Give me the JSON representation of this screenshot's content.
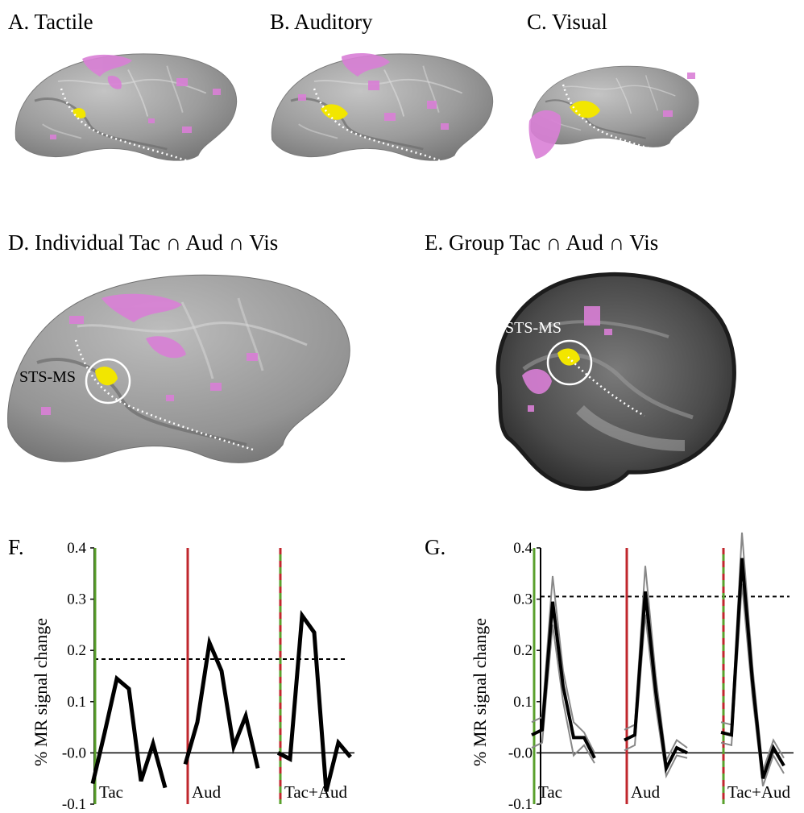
{
  "panels": {
    "a": {
      "label": "A. Tactile"
    },
    "b": {
      "label": "B. Auditory"
    },
    "c": {
      "label": "C. Visual"
    },
    "d": {
      "label": "D. Individual Tac ∩ Aud ∩ Vis",
      "roi": "STS-MS"
    },
    "e": {
      "label": "E. Group Tac ∩ Aud ∩ Vis",
      "roi": "STS-MS"
    },
    "f": {
      "label": "F."
    },
    "g": {
      "label": "G."
    }
  },
  "colors": {
    "activation": "#d97fd6",
    "overlap": "#f2e600",
    "tactile_onset": "#5aa02c",
    "auditory_onset": "#c0272d",
    "mean_trace": "#000000",
    "individual_trace": "#888888"
  },
  "chart_data": [
    {
      "id": "F",
      "type": "line",
      "ylabel": "% MR signal change",
      "ylim": [
        -0.1,
        0.4
      ],
      "yticks": [
        "0.4",
        "0.3",
        "0.2",
        "0.1",
        "-0.0",
        "-0.1"
      ],
      "threshold": 0.183,
      "conditions": [
        {
          "label": "Tac",
          "values": [
            -0.06,
            0.04,
            0.145,
            0.125,
            -0.055,
            0.018,
            -0.068
          ]
        },
        {
          "label": "Aud",
          "values": [
            -0.022,
            0.06,
            0.215,
            0.16,
            0.012,
            0.072,
            -0.03
          ]
        },
        {
          "label": "Tac+Aud",
          "values": [
            0.0,
            -0.012,
            0.268,
            0.235,
            -0.075,
            0.02,
            -0.008
          ]
        }
      ]
    },
    {
      "id": "G",
      "type": "line",
      "ylabel": "% MR signal change",
      "ylim": [
        -0.1,
        0.4
      ],
      "yticks": [
        "0.4",
        "0.3",
        "0.2",
        "0.1",
        "-0.0",
        "-0.1"
      ],
      "threshold": 0.305,
      "conditions": [
        {
          "label": "Tac",
          "mean": [
            0.035,
            0.045,
            0.295,
            0.13,
            0.03,
            0.03,
            -0.01
          ],
          "individuals": [
            [
              0.06,
              0.07,
              0.345,
              0.16,
              0.06,
              0.04,
              0.0
            ],
            [
              0.01,
              0.02,
              0.25,
              0.1,
              -0.005,
              0.015,
              -0.02
            ]
          ]
        },
        {
          "label": "Aud",
          "mean": [
            0.025,
            0.035,
            0.315,
            0.12,
            -0.03,
            0.01,
            0.0
          ],
          "individuals": [
            [
              0.045,
              0.055,
              0.365,
              0.15,
              -0.015,
              0.025,
              0.01
            ],
            [
              0.005,
              0.015,
              0.27,
              0.09,
              -0.045,
              -0.005,
              -0.01
            ]
          ]
        },
        {
          "label": "Tac+Aud",
          "mean": [
            0.04,
            0.035,
            0.38,
            0.14,
            -0.05,
            0.01,
            -0.025
          ],
          "individuals": [
            [
              0.06,
              0.055,
              0.43,
              0.17,
              -0.035,
              0.025,
              -0.01
            ],
            [
              0.02,
              0.015,
              0.33,
              0.11,
              -0.065,
              -0.005,
              -0.04
            ]
          ]
        }
      ]
    }
  ]
}
